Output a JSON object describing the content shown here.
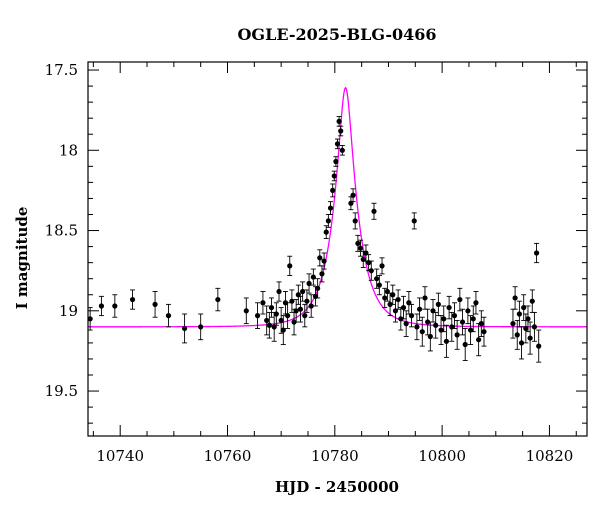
{
  "chart_data": {
    "type": "scatter",
    "title": "OGLE-2025-BLG-0466",
    "xlabel": "HJD - 2450000",
    "ylabel": "I magnitude",
    "xlim": [
      10734,
      10827
    ],
    "ylim": [
      19.78,
      17.45
    ],
    "y_inverted": true,
    "x_ticks": [
      10740,
      10760,
      10780,
      10800,
      10820
    ],
    "x_minor_step": 5,
    "y_ticks": [
      17.5,
      18,
      18.5,
      19,
      19.5
    ],
    "y_minor_step": 0.1,
    "grid": false,
    "series": [
      {
        "kind": "points_with_errorbars",
        "color": "#000000",
        "points": [
          [
            10734.4,
            19.05,
            0.07
          ],
          [
            10736.5,
            18.97,
            0.06
          ],
          [
            10739.0,
            18.97,
            0.07
          ],
          [
            10742.3,
            18.93,
            0.06
          ],
          [
            10746.5,
            18.96,
            0.08
          ],
          [
            10749.0,
            19.03,
            0.07
          ],
          [
            10752.0,
            19.11,
            0.09
          ],
          [
            10755.0,
            19.1,
            0.08
          ],
          [
            10758.2,
            18.93,
            0.07
          ],
          [
            10763.5,
            19.0,
            0.08
          ],
          [
            10765.6,
            19.03,
            0.08
          ],
          [
            10766.6,
            18.95,
            0.07
          ],
          [
            10767.3,
            19.06,
            0.09
          ],
          [
            10767.8,
            19.09,
            0.08
          ],
          [
            10768.2,
            18.98,
            0.06
          ],
          [
            10768.7,
            19.1,
            0.09
          ],
          [
            10769.1,
            19.02,
            0.07
          ],
          [
            10769.6,
            18.88,
            0.06
          ],
          [
            10770.0,
            19.06,
            0.08
          ],
          [
            10770.4,
            19.12,
            0.09
          ],
          [
            10770.8,
            18.95,
            0.07
          ],
          [
            10771.2,
            19.03,
            0.08
          ],
          [
            10771.6,
            18.72,
            0.06
          ],
          [
            10772.0,
            18.94,
            0.07
          ],
          [
            10772.4,
            19.07,
            0.08
          ],
          [
            10772.8,
            19.0,
            0.07
          ],
          [
            10773.2,
            18.9,
            0.06
          ],
          [
            10773.6,
            18.99,
            0.08
          ],
          [
            10774.0,
            18.88,
            0.06
          ],
          [
            10774.4,
            19.03,
            0.07
          ],
          [
            10774.8,
            18.94,
            0.07
          ],
          [
            10775.2,
            18.83,
            0.06
          ],
          [
            10775.6,
            18.97,
            0.07
          ],
          [
            10776.0,
            18.79,
            0.05
          ],
          [
            10776.4,
            18.91,
            0.06
          ],
          [
            10776.8,
            18.86,
            0.06
          ],
          [
            10777.2,
            18.67,
            0.05
          ],
          [
            10777.6,
            18.77,
            0.05
          ],
          [
            10778.0,
            18.69,
            0.05
          ],
          [
            10778.4,
            18.51,
            0.04
          ],
          [
            10778.8,
            18.44,
            0.04
          ],
          [
            10779.2,
            18.36,
            0.04
          ],
          [
            10779.6,
            18.25,
            0.04
          ],
          [
            10779.9,
            18.16,
            0.03
          ],
          [
            10780.2,
            18.07,
            0.03
          ],
          [
            10780.5,
            17.96,
            0.03
          ],
          [
            10780.8,
            17.82,
            0.03
          ],
          [
            10781.1,
            17.88,
            0.03
          ],
          [
            10781.4,
            18.0,
            0.03
          ],
          [
            10783.0,
            18.33,
            0.04
          ],
          [
            10783.4,
            18.28,
            0.04
          ],
          [
            10783.8,
            18.44,
            0.05
          ],
          [
            10784.3,
            18.58,
            0.05
          ],
          [
            10784.8,
            18.61,
            0.05
          ],
          [
            10785.3,
            18.68,
            0.05
          ],
          [
            10785.8,
            18.64,
            0.05
          ],
          [
            10786.3,
            18.7,
            0.05
          ],
          [
            10786.8,
            18.75,
            0.06
          ],
          [
            10787.3,
            18.38,
            0.05
          ],
          [
            10787.8,
            18.8,
            0.06
          ],
          [
            10788.3,
            18.84,
            0.06
          ],
          [
            10788.8,
            18.72,
            0.05
          ],
          [
            10789.3,
            18.92,
            0.06
          ],
          [
            10789.8,
            18.88,
            0.06
          ],
          [
            10790.3,
            18.96,
            0.07
          ],
          [
            10790.8,
            18.9,
            0.06
          ],
          [
            10791.3,
            19.0,
            0.07
          ],
          [
            10791.8,
            18.93,
            0.06
          ],
          [
            10792.3,
            19.05,
            0.07
          ],
          [
            10792.8,
            18.98,
            0.07
          ],
          [
            10793.3,
            19.08,
            0.08
          ],
          [
            10793.8,
            18.95,
            0.07
          ],
          [
            10794.3,
            19.03,
            0.07
          ],
          [
            10794.8,
            18.44,
            0.05
          ],
          [
            10795.3,
            19.1,
            0.08
          ],
          [
            10795.8,
            18.99,
            0.07
          ],
          [
            10796.3,
            19.13,
            0.09
          ],
          [
            10796.8,
            18.92,
            0.07
          ],
          [
            10797.3,
            19.07,
            0.08
          ],
          [
            10797.8,
            19.16,
            0.09
          ],
          [
            10798.3,
            19.0,
            0.07
          ],
          [
            10798.8,
            19.09,
            0.08
          ],
          [
            10799.3,
            18.96,
            0.07
          ],
          [
            10799.8,
            19.12,
            0.09
          ],
          [
            10800.3,
            19.05,
            0.08
          ],
          [
            10800.8,
            19.19,
            0.1
          ],
          [
            10801.3,
            18.98,
            0.07
          ],
          [
            10801.8,
            19.1,
            0.09
          ],
          [
            10802.3,
            19.03,
            0.08
          ],
          [
            10802.8,
            19.15,
            0.09
          ],
          [
            10803.3,
            18.93,
            0.07
          ],
          [
            10803.8,
            19.07,
            0.08
          ],
          [
            10804.3,
            19.21,
            0.1
          ],
          [
            10804.8,
            19.0,
            0.08
          ],
          [
            10805.3,
            19.12,
            0.09
          ],
          [
            10805.8,
            19.05,
            0.08
          ],
          [
            10806.3,
            18.95,
            0.07
          ],
          [
            10806.8,
            19.18,
            0.1
          ],
          [
            10807.3,
            19.08,
            0.08
          ],
          [
            10807.8,
            19.13,
            0.09
          ],
          [
            10813.2,
            19.08,
            0.09
          ],
          [
            10813.6,
            18.92,
            0.07
          ],
          [
            10814.0,
            19.15,
            0.09
          ],
          [
            10814.4,
            19.02,
            0.08
          ],
          [
            10814.8,
            19.2,
            0.1
          ],
          [
            10815.2,
            18.98,
            0.08
          ],
          [
            10815.6,
            19.11,
            0.09
          ],
          [
            10816.0,
            19.05,
            0.08
          ],
          [
            10816.4,
            19.17,
            0.1
          ],
          [
            10816.8,
            18.94,
            0.07
          ],
          [
            10817.2,
            19.1,
            0.09
          ],
          [
            10817.6,
            18.64,
            0.06
          ],
          [
            10818.0,
            19.22,
            0.1
          ]
        ]
      },
      {
        "kind": "model_curve",
        "color": "#ff00ff",
        "model": "pspl",
        "t0": 10782.0,
        "tE": 4.5,
        "u0": 0.26,
        "baseline_mag": 19.1
      }
    ]
  }
}
